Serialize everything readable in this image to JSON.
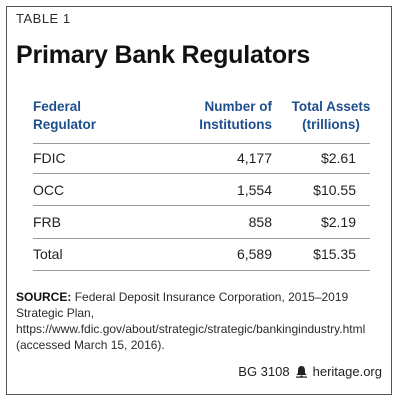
{
  "table_label": "TABLE 1",
  "title": "Primary Bank Regulators",
  "chart_data": {
    "type": "table",
    "title": "Primary Bank Regulators",
    "columns": [
      {
        "line1": "Federal",
        "line2": "Regulator"
      },
      {
        "line1": "Number of",
        "line2": "Institutions"
      },
      {
        "line1": "Total Assets",
        "line2": "(trillions)"
      }
    ],
    "rows": [
      {
        "regulator": "FDIC",
        "institutions": "4,177",
        "assets": "$2.61"
      },
      {
        "regulator": "OCC",
        "institutions": "1,554",
        "assets": "$10.55"
      },
      {
        "regulator": "FRB",
        "institutions": "858",
        "assets": "$2.19"
      },
      {
        "regulator": "Total",
        "institutions": "6,589",
        "assets": "$15.35"
      }
    ]
  },
  "source": {
    "label": "SOURCE:",
    "text": "Federal Deposit Insurance Corporation, 2015–2019 Strategic Plan, https://www.fdic.gov/about/strategic/strategic/bankingindustry.html (accessed March 15, 2016)."
  },
  "footer": {
    "code": "BG 3108",
    "icon": "heritage-bell-icon",
    "site": "heritage.org"
  },
  "colors": {
    "header_blue": "#1f4e8c",
    "rule_gray": "#9a9a9a",
    "border": "#555555"
  }
}
